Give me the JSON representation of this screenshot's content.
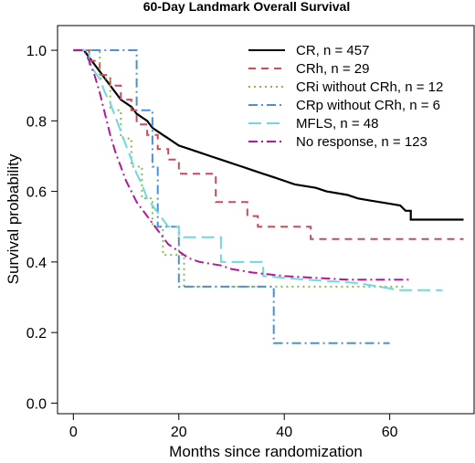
{
  "chart_data": {
    "type": "line",
    "title": "60-Day Landmark Overall Survival",
    "xlabel": "Months since randomization",
    "ylabel": "Survival probability",
    "xlim": [
      -3,
      76
    ],
    "ylim": [
      -0.03,
      1.07
    ],
    "xticks": [
      0,
      20,
      40,
      60
    ],
    "yticks": [
      0.0,
      0.2,
      0.4,
      0.6,
      0.8,
      1.0
    ],
    "ytick_labels": [
      "0.0",
      "0.2",
      "0.4",
      "0.6",
      "0.8",
      "1.0"
    ],
    "grid": false,
    "legend_position": "top-right",
    "series": [
      {
        "name": "CR, n = 457",
        "color": "#000000",
        "dash": "solid",
        "points": [
          [
            0,
            1.0
          ],
          [
            2,
            1.0
          ],
          [
            3,
            0.98
          ],
          [
            4,
            0.96
          ],
          [
            5,
            0.94
          ],
          [
            6,
            0.92
          ],
          [
            7,
            0.9
          ],
          [
            8,
            0.88
          ],
          [
            9,
            0.86
          ],
          [
            10,
            0.85
          ],
          [
            11,
            0.84
          ],
          [
            12,
            0.82
          ],
          [
            13,
            0.81
          ],
          [
            14,
            0.8
          ],
          [
            15,
            0.78
          ],
          [
            16,
            0.77
          ],
          [
            17,
            0.76
          ],
          [
            18,
            0.75
          ],
          [
            19,
            0.74
          ],
          [
            20,
            0.73
          ],
          [
            22,
            0.72
          ],
          [
            24,
            0.71
          ],
          [
            26,
            0.7
          ],
          [
            28,
            0.69
          ],
          [
            30,
            0.68
          ],
          [
            32,
            0.67
          ],
          [
            34,
            0.66
          ],
          [
            36,
            0.65
          ],
          [
            38,
            0.64
          ],
          [
            40,
            0.63
          ],
          [
            42,
            0.62
          ],
          [
            44,
            0.615
          ],
          [
            46,
            0.61
          ],
          [
            48,
            0.6
          ],
          [
            50,
            0.595
          ],
          [
            52,
            0.59
          ],
          [
            54,
            0.58
          ],
          [
            56,
            0.575
          ],
          [
            58,
            0.57
          ],
          [
            60,
            0.565
          ],
          [
            62,
            0.56
          ],
          [
            63,
            0.545
          ],
          [
            64,
            0.545
          ],
          [
            64,
            0.52
          ],
          [
            74,
            0.52
          ]
        ]
      },
      {
        "name": "CRh, n = 29",
        "color": "#cc4a5a",
        "dash": "8,6",
        "points": [
          [
            0,
            1.0
          ],
          [
            3,
            1.0
          ],
          [
            3,
            0.97
          ],
          [
            5,
            0.97
          ],
          [
            5,
            0.93
          ],
          [
            7,
            0.93
          ],
          [
            7,
            0.9
          ],
          [
            9,
            0.9
          ],
          [
            9,
            0.86
          ],
          [
            11,
            0.86
          ],
          [
            11,
            0.83
          ],
          [
            12,
            0.83
          ],
          [
            12,
            0.79
          ],
          [
            14,
            0.79
          ],
          [
            14,
            0.76
          ],
          [
            16,
            0.76
          ],
          [
            16,
            0.72
          ],
          [
            18,
            0.72
          ],
          [
            18,
            0.69
          ],
          [
            20,
            0.69
          ],
          [
            20,
            0.65
          ],
          [
            27,
            0.65
          ],
          [
            27,
            0.57
          ],
          [
            33,
            0.57
          ],
          [
            33,
            0.53
          ],
          [
            35,
            0.53
          ],
          [
            35,
            0.5
          ],
          [
            45,
            0.5
          ],
          [
            45,
            0.465
          ],
          [
            63,
            0.465
          ],
          [
            74,
            0.465
          ]
        ]
      },
      {
        "name": "CRi without CRh, n = 12",
        "color": "#7cc24a",
        "dash": "2,4",
        "points": [
          [
            0,
            1.0
          ],
          [
            5,
            1.0
          ],
          [
            5,
            0.92
          ],
          [
            7,
            0.92
          ],
          [
            7,
            0.83
          ],
          [
            9,
            0.83
          ],
          [
            9,
            0.75
          ],
          [
            11,
            0.75
          ],
          [
            11,
            0.67
          ],
          [
            13,
            0.67
          ],
          [
            13,
            0.58
          ],
          [
            15,
            0.58
          ],
          [
            15,
            0.5
          ],
          [
            17,
            0.5
          ],
          [
            17,
            0.42
          ],
          [
            21,
            0.42
          ],
          [
            21,
            0.33
          ],
          [
            63,
            0.33
          ]
        ]
      },
      {
        "name": "CRp without CRh, n = 6",
        "color": "#4a90d9",
        "dash": "10,4,2,4",
        "points": [
          [
            0,
            1.0
          ],
          [
            12,
            1.0
          ],
          [
            12,
            0.83
          ],
          [
            15,
            0.83
          ],
          [
            15,
            0.67
          ],
          [
            16,
            0.67
          ],
          [
            16,
            0.5
          ],
          [
            20,
            0.5
          ],
          [
            20,
            0.33
          ],
          [
            38,
            0.33
          ],
          [
            38,
            0.17
          ],
          [
            60,
            0.17
          ]
        ]
      },
      {
        "name": "MFLS, n = 48",
        "color": "#6fd8e0",
        "dash": "14,6",
        "points": [
          [
            0,
            1.0
          ],
          [
            3,
            1.0
          ],
          [
            3,
            0.96
          ],
          [
            5,
            0.92
          ],
          [
            6,
            0.88
          ],
          [
            7,
            0.85
          ],
          [
            8,
            0.81
          ],
          [
            9,
            0.77
          ],
          [
            10,
            0.73
          ],
          [
            11,
            0.69
          ],
          [
            12,
            0.65
          ],
          [
            13,
            0.62
          ],
          [
            14,
            0.58
          ],
          [
            15,
            0.56
          ],
          [
            16,
            0.54
          ],
          [
            17,
            0.52
          ],
          [
            18,
            0.5
          ],
          [
            20,
            0.5
          ],
          [
            20,
            0.47
          ],
          [
            28,
            0.47
          ],
          [
            28,
            0.4
          ],
          [
            36,
            0.4
          ],
          [
            36,
            0.36
          ],
          [
            44,
            0.35
          ],
          [
            54,
            0.34
          ],
          [
            58,
            0.33
          ],
          [
            62,
            0.32
          ],
          [
            70,
            0.32
          ]
        ]
      },
      {
        "name": "No response, n = 123",
        "color": "#b0199a",
        "dash": "10,4,2,4",
        "points": [
          [
            0,
            1.0
          ],
          [
            2,
            1.0
          ],
          [
            3,
            0.97
          ],
          [
            4,
            0.93
          ],
          [
            5,
            0.88
          ],
          [
            6,
            0.82
          ],
          [
            7,
            0.76
          ],
          [
            8,
            0.71
          ],
          [
            9,
            0.67
          ],
          [
            10,
            0.63
          ],
          [
            11,
            0.6
          ],
          [
            12,
            0.57
          ],
          [
            13,
            0.55
          ],
          [
            14,
            0.53
          ],
          [
            15,
            0.51
          ],
          [
            16,
            0.49
          ],
          [
            17,
            0.47
          ],
          [
            18,
            0.45
          ],
          [
            20,
            0.43
          ],
          [
            22,
            0.41
          ],
          [
            24,
            0.4
          ],
          [
            28,
            0.39
          ],
          [
            30,
            0.38
          ],
          [
            34,
            0.37
          ],
          [
            40,
            0.36
          ],
          [
            46,
            0.355
          ],
          [
            52,
            0.35
          ],
          [
            58,
            0.35
          ],
          [
            64,
            0.35
          ]
        ]
      }
    ]
  }
}
